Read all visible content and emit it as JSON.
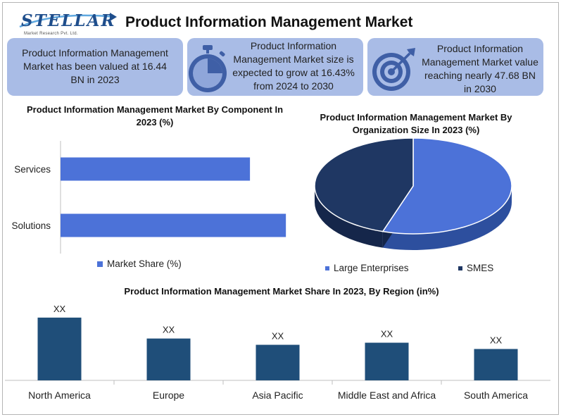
{
  "logo": {
    "name": "STELLAR",
    "tagline": "Market Research Pvt. Ltd."
  },
  "title": "Product Information Management Market",
  "info_boxes": [
    {
      "text": "Product Information Management Market has been valued at 16.44 BN in 2023",
      "icon": "none"
    },
    {
      "text": "Product Information Management Market size is expected to grow at 16.43% from 2024 to 2030",
      "icon": "stopwatch-icon"
    },
    {
      "text": "Product Information Management Market value reaching nearly 47.68 BN in 2030",
      "icon": "target-icon"
    }
  ],
  "colors": {
    "info_bg": "#a9bce6",
    "bar": "#4c72d8",
    "pie_light": "#4c72d8",
    "pie_dark": "#1f3763",
    "column": "#1f4e79",
    "brand": "#1f4e8c"
  },
  "chart_data": [
    {
      "type": "bar",
      "orientation": "horizontal",
      "title": "Product Information Management Market By Component In 2023 (%)",
      "categories": [
        "Services",
        "Solutions"
      ],
      "series": [
        {
          "name": "Market Share (%)",
          "values": [
            58,
            69
          ]
        }
      ],
      "xlim": [
        0,
        100
      ],
      "grid": false,
      "legend": "bottom"
    },
    {
      "type": "pie",
      "title": "Product Information Management Market By Organization Size In 2023 (%)",
      "labels": [
        "Large Enterprises",
        "SMES"
      ],
      "values": [
        55,
        45
      ],
      "style": "3d",
      "legend": "bottom"
    },
    {
      "type": "bar",
      "title": "Product Information Management Market Share In 2023, By Region (in%)",
      "categories": [
        "North America",
        "Europe",
        "Asia Pacific",
        "Middle East and Africa",
        "South America"
      ],
      "values": [
        30,
        20,
        17,
        18,
        15
      ],
      "data_labels": [
        "XX",
        "XX",
        "XX",
        "XX",
        "XX"
      ],
      "ylim": [
        0,
        34
      ],
      "grid": false
    }
  ]
}
